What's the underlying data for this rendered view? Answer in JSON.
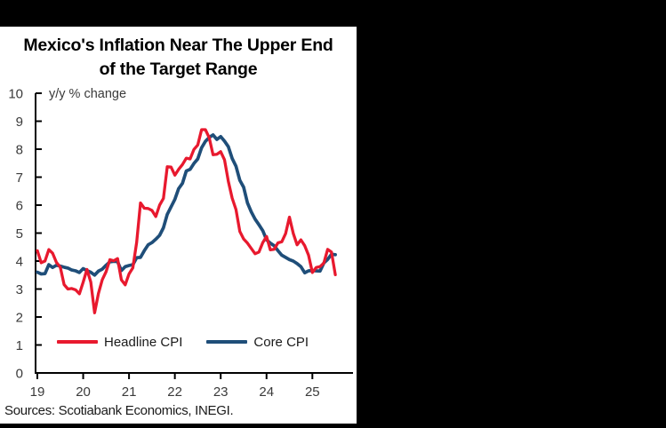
{
  "header": {
    "title_line1": "Mexico's Inflation Near The Upper End",
    "title_line2": "of the Target Range"
  },
  "footer": {
    "sources": "Sources: Scotiabank Economics, INEGI."
  },
  "chart_data": {
    "type": "line",
    "title": "Mexico's Inflation Near The Upper End of the Target Range",
    "axis_note": "y/y % change",
    "xlabel": "",
    "ylabel": "y/y % change",
    "ylim": [
      0,
      10
    ],
    "grid": false,
    "legend_position": "inside-bottom-left",
    "frequency": "monthly",
    "x_start": "2019-01",
    "x_end": "2025-07",
    "y_tick_labels": [
      "0",
      "1",
      "2",
      "3",
      "4",
      "5",
      "6",
      "7",
      "8",
      "9",
      "10"
    ],
    "x_tick_labels": [
      "19",
      "20",
      "21",
      "22",
      "23",
      "24",
      "25"
    ],
    "series": [
      {
        "name": "Headline CPI",
        "color": "#e8192e",
        "values": [
          4.37,
          3.94,
          4.0,
          4.41,
          4.28,
          3.95,
          3.78,
          3.16,
          3.0,
          3.02,
          2.97,
          2.83,
          3.24,
          3.7,
          3.25,
          2.15,
          2.84,
          3.33,
          3.62,
          4.05,
          4.01,
          4.09,
          3.33,
          3.15,
          3.54,
          3.76,
          4.67,
          6.08,
          5.89,
          5.88,
          5.81,
          5.59,
          6.0,
          6.24,
          7.37,
          7.36,
          7.07,
          7.28,
          7.45,
          7.68,
          7.65,
          7.99,
          8.15,
          8.7,
          8.7,
          8.41,
          7.8,
          7.82,
          7.91,
          7.62,
          6.85,
          6.25,
          5.84,
          5.06,
          4.79,
          4.64,
          4.45,
          4.26,
          4.32,
          4.66,
          4.88,
          4.4,
          4.42,
          4.65,
          4.69,
          4.98,
          5.57,
          4.99,
          4.58,
          4.76,
          4.55,
          4.21,
          3.59,
          3.77,
          3.8,
          3.93,
          4.42,
          4.32,
          3.51
        ]
      },
      {
        "name": "Core CPI",
        "color": "#1f4e79",
        "values": [
          3.6,
          3.54,
          3.55,
          3.87,
          3.77,
          3.85,
          3.82,
          3.78,
          3.75,
          3.68,
          3.65,
          3.59,
          3.73,
          3.66,
          3.6,
          3.5,
          3.64,
          3.71,
          3.85,
          3.97,
          3.99,
          3.98,
          3.66,
          3.8,
          3.84,
          3.87,
          4.12,
          4.13,
          4.37,
          4.58,
          4.66,
          4.78,
          4.92,
          5.19,
          5.67,
          5.94,
          6.21,
          6.59,
          6.78,
          7.22,
          7.28,
          7.49,
          7.65,
          8.05,
          8.28,
          8.42,
          8.51,
          8.35,
          8.45,
          8.29,
          8.09,
          7.67,
          7.39,
          6.89,
          6.64,
          6.08,
          5.76,
          5.5,
          5.3,
          5.09,
          4.76,
          4.64,
          4.55,
          4.37,
          4.21,
          4.13,
          4.05,
          4.0,
          3.91,
          3.8,
          3.58,
          3.65,
          3.66,
          3.65,
          3.64,
          3.93,
          4.06,
          4.24,
          4.23
        ]
      }
    ]
  }
}
